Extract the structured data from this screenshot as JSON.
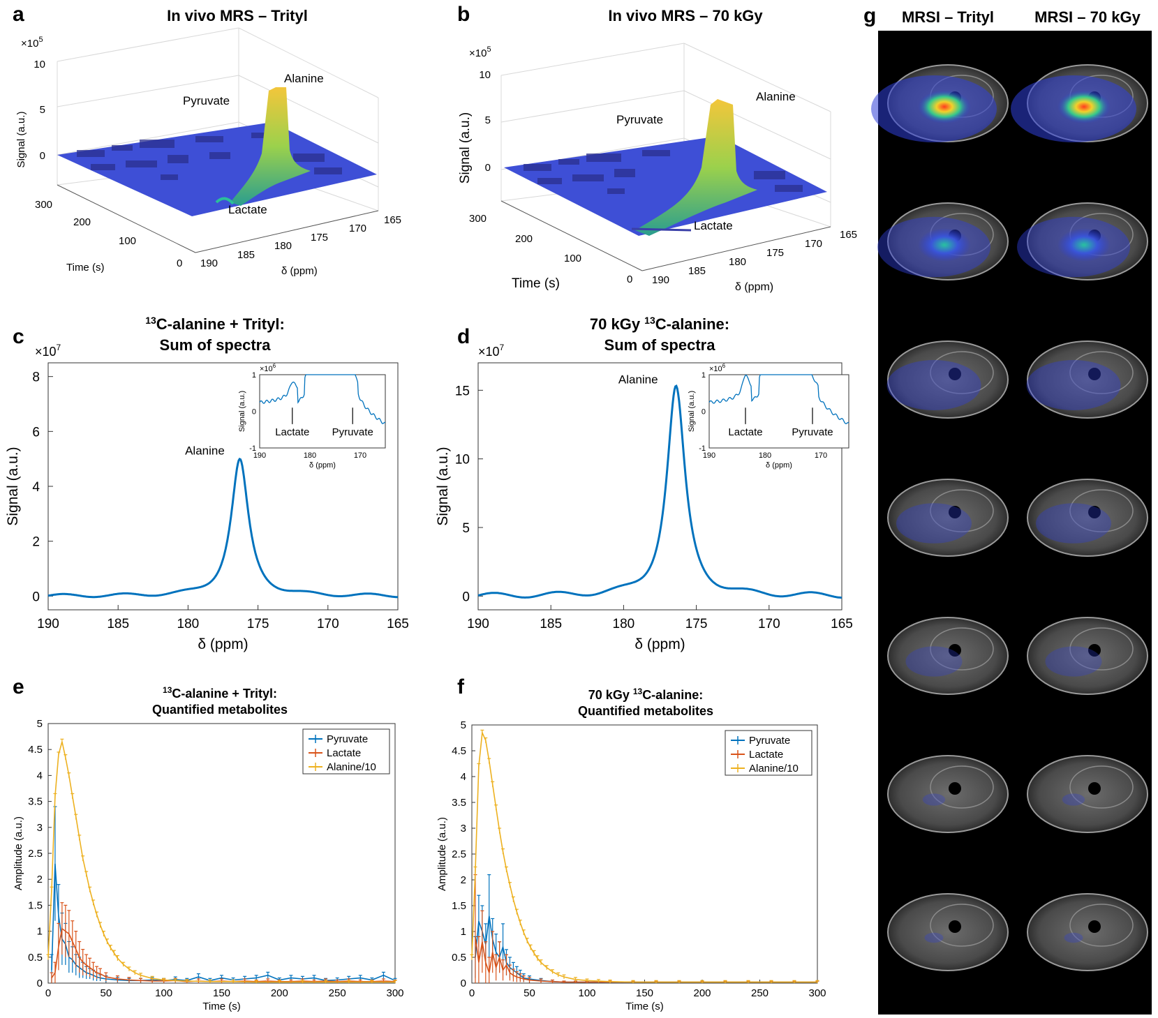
{
  "panels": {
    "a": {
      "label": "a",
      "title": "In vivo MRS – Trityl"
    },
    "b": {
      "label": "b",
      "title": "In vivo MRS – 70 kGy"
    },
    "c": {
      "label": "c"
    },
    "d": {
      "label": "d"
    },
    "e": {
      "label": "e"
    },
    "f": {
      "label": "f"
    },
    "g": {
      "label": "g",
      "col_titles": [
        "MRSI – Trityl",
        "MRSI – 70 kGy"
      ],
      "rows": 7
    }
  },
  "chart_data": [
    {
      "id": "a",
      "type": "surface3d",
      "title": "In vivo MRS – Trityl",
      "zlabel": "Signal (a.u.)",
      "xlabel": "Time (s)",
      "ylabel": "δ (ppm)",
      "zlim": [
        0,
        10
      ],
      "z_ticks": [
        "10",
        "5",
        "0"
      ],
      "z_exponent": "×10",
      "z_exponent_power": "5",
      "time_ticks": [
        "300",
        "200",
        "100",
        "0"
      ],
      "ppm_ticks": [
        "190",
        "185",
        "180",
        "175",
        "170",
        "165"
      ],
      "peaks": [
        {
          "name": "Pyruvate",
          "ppm": 171,
          "height": 0.05
        },
        {
          "name": "Alanine",
          "ppm": 176.5,
          "height": 6.9
        },
        {
          "name": "Lactate",
          "ppm": 183,
          "height": 0.3
        }
      ]
    },
    {
      "id": "b",
      "type": "surface3d",
      "title": "In vivo MRS – 70 kGy",
      "zlabel": "Signal (a.u.)",
      "xlabel": "Time (s)",
      "ylabel": "δ (ppm)",
      "zlim": [
        0,
        10
      ],
      "z_ticks": [
        "10",
        "5",
        "0"
      ],
      "z_exponent": "×10",
      "z_exponent_power": "5",
      "time_ticks": [
        "300",
        "200",
        "100",
        "0"
      ],
      "ppm_ticks": [
        "190",
        "185",
        "180",
        "175",
        "170",
        "165"
      ],
      "peaks": [
        {
          "name": "Pyruvate",
          "ppm": 171,
          "height": 0.05
        },
        {
          "name": "Alanine",
          "ppm": 176.5,
          "height": 7.8
        },
        {
          "name": "Lactate",
          "ppm": 183,
          "height": 0.3
        }
      ]
    },
    {
      "id": "c",
      "type": "line",
      "title_sup": "13",
      "title_line1": "C-alanine + Trityl:",
      "title_line2": "Sum of spectra",
      "xlabel": "δ (ppm)",
      "ylabel": "Signal (a.u.)",
      "exponent": "×10",
      "exponent_power": "7",
      "xlim": [
        190,
        165
      ],
      "ylim": [
        -0.5,
        8.5
      ],
      "xticks": [
        190,
        185,
        180,
        175,
        170,
        165
      ],
      "yticks": [
        0,
        2,
        4,
        6,
        8
      ],
      "peak": {
        "center": 176.3,
        "height": 4.95,
        "width": 0.75
      },
      "annotations": [
        {
          "text": "Alanine",
          "x": 178.8,
          "y": 5.0
        }
      ],
      "inset": {
        "ylabel": "Signal (a.u.)",
        "xlabel": "δ (ppm)",
        "exponent": "×10",
        "exponent_power": "6",
        "xlim": [
          190,
          165
        ],
        "ylim": [
          -1,
          1
        ],
        "xticks": [
          190,
          180,
          170
        ],
        "yticks": [
          1,
          0,
          -1
        ],
        "labels": [
          {
            "text": "Lactate",
            "x": 183.5
          },
          {
            "text": "Pyruvate",
            "x": 171.5
          }
        ],
        "lactate_peak": 0.35,
        "pyruvate_peak": 0.35
      }
    },
    {
      "id": "d",
      "type": "line",
      "title_pre": "70 kGy ",
      "title_sup": "13",
      "title_line1": "C-alanine:",
      "title_line2": "Sum of spectra",
      "xlabel": "δ (ppm)",
      "ylabel": "Signal (a.u.)",
      "exponent": "×10",
      "exponent_power": "7",
      "xlim": [
        190,
        165
      ],
      "ylim": [
        -1,
        17
      ],
      "xticks": [
        190,
        185,
        180,
        175,
        170,
        165
      ],
      "yticks": [
        0,
        5,
        10,
        15
      ],
      "peak": {
        "center": 176.4,
        "height": 15.2,
        "width": 0.75
      },
      "annotations": [
        {
          "text": "Alanine",
          "x": 179.0,
          "y": 15.2
        }
      ],
      "inset": {
        "ylabel": "Signal (a.u.)",
        "xlabel": "δ (ppm)",
        "exponent": "×10",
        "exponent_power": "6",
        "xlim": [
          190,
          165
        ],
        "ylim": [
          -1,
          1
        ],
        "xticks": [
          190,
          180,
          170
        ],
        "yticks": [
          1,
          0,
          -1
        ],
        "labels": [
          {
            "text": "Lactate",
            "x": 183.5
          },
          {
            "text": "Pyruvate",
            "x": 171.5
          }
        ],
        "lactate_peak": 0.55,
        "pyruvate_peak": 0.1
      }
    },
    {
      "id": "e",
      "type": "line_errorbar",
      "title_sup": "13",
      "title_line1": "C-alanine + Trityl:",
      "title_line2": "Quantified metabolites",
      "xlabel": "Time (s)",
      "ylabel": "Amplitude (a.u.)",
      "xlim": [
        0,
        300
      ],
      "ylim": [
        0,
        5
      ],
      "xticks": [
        0,
        50,
        100,
        150,
        200,
        250,
        300
      ],
      "yticks": [
        0,
        0.5,
        1,
        1.5,
        2,
        2.5,
        3,
        3.5,
        4,
        4.5,
        5
      ],
      "legend": [
        "Pyruvate",
        "Lactate",
        "Alanine/10"
      ],
      "series": [
        {
          "name": "Pyruvate",
          "color": "#0072BD",
          "x": [
            3,
            6,
            9,
            12,
            15,
            18,
            21,
            24,
            27,
            30,
            33,
            36,
            39,
            42,
            45,
            50,
            60,
            70,
            80,
            90,
            100,
            110,
            120,
            130,
            140,
            150,
            160,
            170,
            180,
            190,
            200,
            210,
            220,
            230,
            240,
            250,
            260,
            270,
            280,
            290,
            300
          ],
          "y": [
            0.25,
            2.3,
            1.3,
            0.85,
            0.75,
            0.5,
            0.45,
            0.35,
            0.3,
            0.25,
            0.2,
            0.18,
            0.15,
            0.12,
            0.1,
            0.08,
            0.06,
            0.05,
            0.05,
            0.06,
            0.05,
            0.07,
            0.05,
            0.12,
            0.05,
            0.1,
            0.06,
            0.08,
            0.1,
            0.15,
            0.06,
            0.1,
            0.08,
            0.1,
            0.05,
            0.06,
            0.08,
            0.1,
            0.06,
            0.15,
            0.05
          ],
          "err": [
            0.3,
            1.1,
            0.6,
            0.5,
            0.4,
            0.3,
            0.25,
            0.2,
            0.2,
            0.15,
            0.12,
            0.1,
            0.1,
            0.08,
            0.06,
            0.06,
            0.05,
            0.04,
            0.04,
            0.05,
            0.04,
            0.05,
            0.04,
            0.06,
            0.04,
            0.05,
            0.04,
            0.05,
            0.05,
            0.06,
            0.04,
            0.05,
            0.05,
            0.05,
            0.04,
            0.04,
            0.05,
            0.05,
            0.04,
            0.06,
            0.04
          ]
        },
        {
          "name": "Lactate",
          "color": "#D95319",
          "x": [
            3,
            6,
            9,
            12,
            15,
            18,
            21,
            24,
            27,
            30,
            33,
            36,
            39,
            42,
            45,
            50,
            60,
            70,
            80,
            90,
            100,
            110,
            120,
            130,
            140,
            150,
            160,
            170,
            180,
            190,
            200,
            210,
            220,
            230,
            240,
            250,
            260,
            270,
            280,
            290,
            300
          ],
          "y": [
            0.1,
            0.2,
            0.7,
            1.05,
            1.0,
            0.95,
            0.8,
            0.65,
            0.5,
            0.4,
            0.35,
            0.3,
            0.25,
            0.2,
            0.18,
            0.12,
            0.08,
            0.06,
            0.05,
            0.04,
            0.04,
            0.05,
            0.03,
            0.04,
            0.03,
            0.04,
            0.03,
            0.04,
            0.03,
            0.04,
            0.03,
            0.03,
            0.04,
            0.03,
            0.04,
            0.03,
            0.04,
            0.03,
            0.03,
            0.04,
            0.03
          ],
          "err": [
            0.1,
            0.2,
            0.45,
            0.5,
            0.5,
            0.45,
            0.4,
            0.35,
            0.3,
            0.25,
            0.2,
            0.18,
            0.15,
            0.12,
            0.1,
            0.08,
            0.06,
            0.05,
            0.04,
            0.04,
            0.04,
            0.04,
            0.03,
            0.04,
            0.03,
            0.04,
            0.03,
            0.04,
            0.03,
            0.04,
            0.03,
            0.03,
            0.04,
            0.03,
            0.04,
            0.03,
            0.04,
            0.03,
            0.03,
            0.04,
            0.03
          ]
        },
        {
          "name": "Alanine/10",
          "color": "#EDB120",
          "x": [
            0,
            3,
            6,
            9,
            12,
            15,
            18,
            21,
            24,
            27,
            30,
            33,
            36,
            39,
            42,
            45,
            48,
            51,
            54,
            57,
            60,
            65,
            70,
            75,
            80,
            90,
            100,
            110,
            120,
            140,
            160,
            180,
            200,
            220,
            240,
            260,
            280,
            300
          ],
          "y": [
            0.5,
            1.8,
            3.6,
            4.4,
            4.65,
            4.35,
            4.0,
            3.6,
            3.2,
            2.8,
            2.4,
            2.1,
            1.8,
            1.55,
            1.32,
            1.12,
            0.95,
            0.8,
            0.68,
            0.58,
            0.48,
            0.36,
            0.27,
            0.2,
            0.15,
            0.09,
            0.06,
            0.05,
            0.04,
            0.03,
            0.03,
            0.02,
            0.02,
            0.02,
            0.02,
            0.02,
            0.02,
            0.02
          ],
          "err": [
            0.05,
            0.05,
            0.05,
            0.05,
            0.05,
            0.05,
            0.05,
            0.05,
            0.05,
            0.05,
            0.05,
            0.05,
            0.05,
            0.05,
            0.05,
            0.05,
            0.05,
            0.05,
            0.05,
            0.05,
            0.05,
            0.04,
            0.04,
            0.04,
            0.04,
            0.04,
            0.03,
            0.03,
            0.03,
            0.03,
            0.03,
            0.03,
            0.03,
            0.03,
            0.03,
            0.03,
            0.03,
            0.03
          ]
        }
      ]
    },
    {
      "id": "f",
      "type": "line_errorbar",
      "title_pre": "70 kGy ",
      "title_sup": "13",
      "title_line1": "C-alanine:",
      "title_line2": "Quantified metabolites",
      "xlabel": "Time (s)",
      "ylabel": "Amplitude (a.u.)",
      "xlim": [
        0,
        300
      ],
      "ylim": [
        0,
        5
      ],
      "xticks": [
        0,
        50,
        100,
        150,
        200,
        250,
        300
      ],
      "yticks": [
        0,
        0.5,
        1,
        1.5,
        2,
        2.5,
        3,
        3.5,
        4,
        4.5,
        5
      ],
      "legend": [
        "Pyruvate",
        "Lactate",
        "Alanine/10"
      ],
      "series": [
        {
          "name": "Pyruvate",
          "color": "#0072BD",
          "x": [
            3,
            6,
            9,
            12,
            15,
            18,
            21,
            24,
            27,
            30,
            33,
            36,
            39,
            42,
            45,
            50,
            60,
            70,
            80,
            90,
            100,
            120,
            140,
            160,
            180,
            200,
            220,
            240,
            260,
            280,
            300
          ],
          "y": [
            0.5,
            1.2,
            1.0,
            0.75,
            1.3,
            0.85,
            0.6,
            0.5,
            0.7,
            0.4,
            0.3,
            0.25,
            0.2,
            0.15,
            0.1,
            0.08,
            0.05,
            0.03,
            0.02,
            0.02,
            0.02,
            0.02,
            0.02,
            0.02,
            0.02,
            0.02,
            0.02,
            0.02,
            0.02,
            0.02,
            0.02
          ],
          "err": [
            0.4,
            0.5,
            0.5,
            0.4,
            0.8,
            0.4,
            0.35,
            0.3,
            0.45,
            0.25,
            0.2,
            0.15,
            0.12,
            0.1,
            0.08,
            0.06,
            0.04,
            0.03,
            0.02,
            0.02,
            0.02,
            0.02,
            0.02,
            0.02,
            0.02,
            0.02,
            0.02,
            0.02,
            0.02,
            0.02,
            0.02
          ]
        },
        {
          "name": "Lactate",
          "color": "#D95319",
          "x": [
            3,
            6,
            9,
            12,
            15,
            18,
            21,
            24,
            27,
            30,
            33,
            36,
            39,
            42,
            45,
            50,
            60,
            70,
            80,
            90,
            100,
            120,
            140,
            160,
            180,
            200,
            220,
            240,
            260,
            280,
            300
          ],
          "y": [
            0.9,
            0.4,
            0.8,
            0.4,
            0.2,
            0.6,
            0.3,
            0.5,
            0.25,
            0.35,
            0.2,
            0.15,
            0.12,
            0.1,
            0.08,
            0.06,
            0.04,
            0.03,
            0.02,
            0.02,
            0.02,
            0.02,
            0.02,
            0.02,
            0.02,
            0.02,
            0.02,
            0.02,
            0.02,
            0.02,
            0.02
          ],
          "err": [
            1.2,
            0.5,
            0.6,
            0.4,
            0.3,
            0.4,
            0.25,
            0.3,
            0.2,
            0.2,
            0.15,
            0.12,
            0.1,
            0.08,
            0.06,
            0.05,
            0.04,
            0.03,
            0.02,
            0.02,
            0.02,
            0.02,
            0.02,
            0.02,
            0.02,
            0.02,
            0.02,
            0.02,
            0.02,
            0.02,
            0.02
          ]
        },
        {
          "name": "Alanine/10",
          "color": "#EDB120",
          "x": [
            0,
            3,
            6,
            9,
            12,
            15,
            18,
            21,
            24,
            27,
            30,
            33,
            36,
            39,
            42,
            45,
            48,
            51,
            54,
            57,
            60,
            65,
            70,
            75,
            80,
            90,
            100,
            110,
            120,
            140,
            160,
            180,
            200,
            220,
            240,
            260,
            280,
            300
          ],
          "y": [
            0.5,
            2.2,
            4.2,
            4.85,
            4.7,
            4.3,
            3.85,
            3.4,
            2.95,
            2.55,
            2.2,
            1.9,
            1.62,
            1.38,
            1.17,
            0.98,
            0.82,
            0.69,
            0.58,
            0.48,
            0.4,
            0.3,
            0.22,
            0.16,
            0.12,
            0.07,
            0.05,
            0.04,
            0.03,
            0.02,
            0.02,
            0.02,
            0.02,
            0.02,
            0.02,
            0.02,
            0.02,
            0.02
          ],
          "err": [
            0.05,
            0.05,
            0.05,
            0.05,
            0.05,
            0.05,
            0.05,
            0.05,
            0.05,
            0.05,
            0.05,
            0.05,
            0.05,
            0.05,
            0.05,
            0.05,
            0.05,
            0.05,
            0.05,
            0.05,
            0.05,
            0.04,
            0.04,
            0.04,
            0.04,
            0.04,
            0.03,
            0.03,
            0.03,
            0.03,
            0.03,
            0.03,
            0.03,
            0.03,
            0.03,
            0.03,
            0.03,
            0.03
          ]
        }
      ]
    }
  ]
}
